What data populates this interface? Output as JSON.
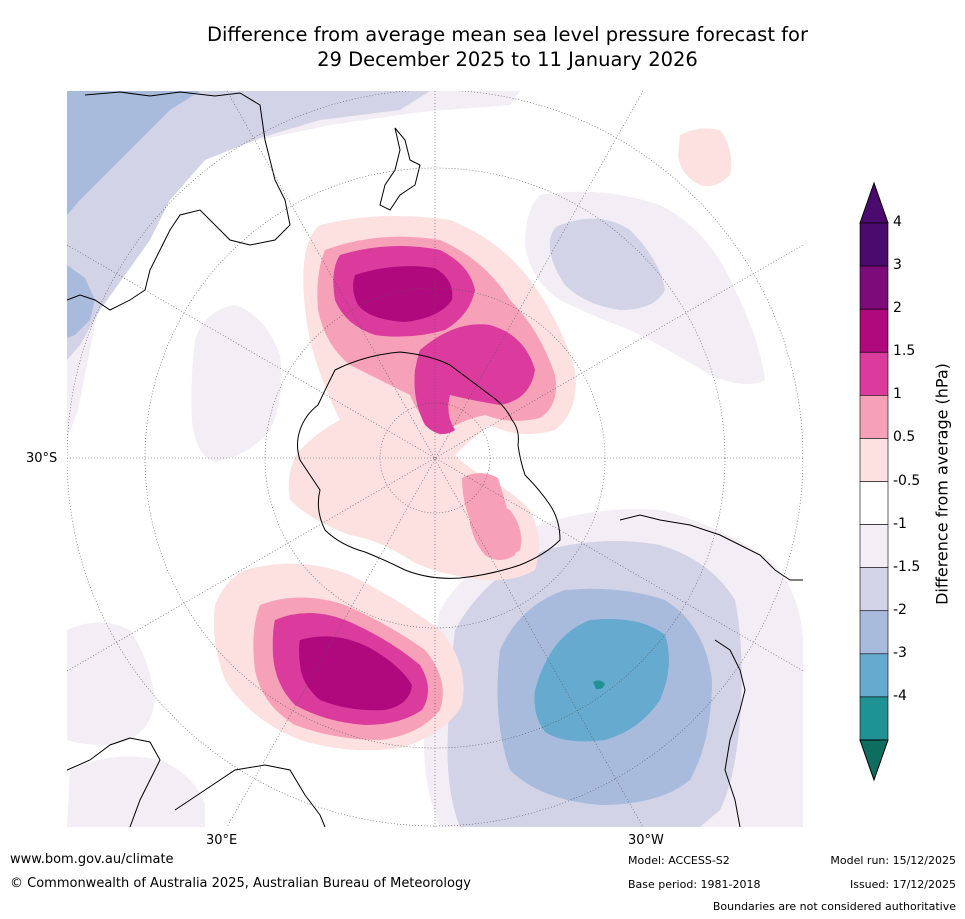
{
  "title": {
    "line1": "Difference from average mean sea level pressure forecast for",
    "line2": "29 December 2025 to 11 January 2026"
  },
  "graticule": {
    "lat_label": "30°S",
    "lon_label_east": "30°E",
    "lon_label_west": "30°W"
  },
  "colorbar": {
    "label": "Difference from average (hPa)",
    "levels": [
      {
        "label": "4",
        "color": "#4b0a6e"
      },
      {
        "label": "3",
        "color": "#7e0b7a"
      },
      {
        "label": "2",
        "color": "#b0097e"
      },
      {
        "label": "1.5",
        "color": "#db3b9d"
      },
      {
        "label": "1",
        "color": "#f7a1b8"
      },
      {
        "label": "0.5",
        "color": "#fde0e0"
      },
      {
        "label": "-0.5",
        "color": "#ffffff"
      },
      {
        "label": "-1",
        "color": "#f3edf5"
      },
      {
        "label": "-1.5",
        "color": "#d2d3e6"
      },
      {
        "label": "-2",
        "color": "#a9bbdc"
      },
      {
        "label": "-3",
        "color": "#66abcf"
      },
      {
        "label": "-4",
        "color": "#1f9295"
      }
    ],
    "extend_max_color": "#4b0a6e",
    "extend_min_color": "#0d6e60"
  },
  "footer": {
    "url": "www.bom.gov.au/climate",
    "copyright": "© Commonwealth of Australia 2025, Australian Bureau of Meteorology",
    "model": "Model: ACCESS-S2",
    "base_period": "Base period: 1981-2018",
    "model_run": "Model run: 15/12/2025",
    "issued": "Issued: 17/12/2025",
    "disclaimer": "Boundaries are not considered authoritative"
  }
}
